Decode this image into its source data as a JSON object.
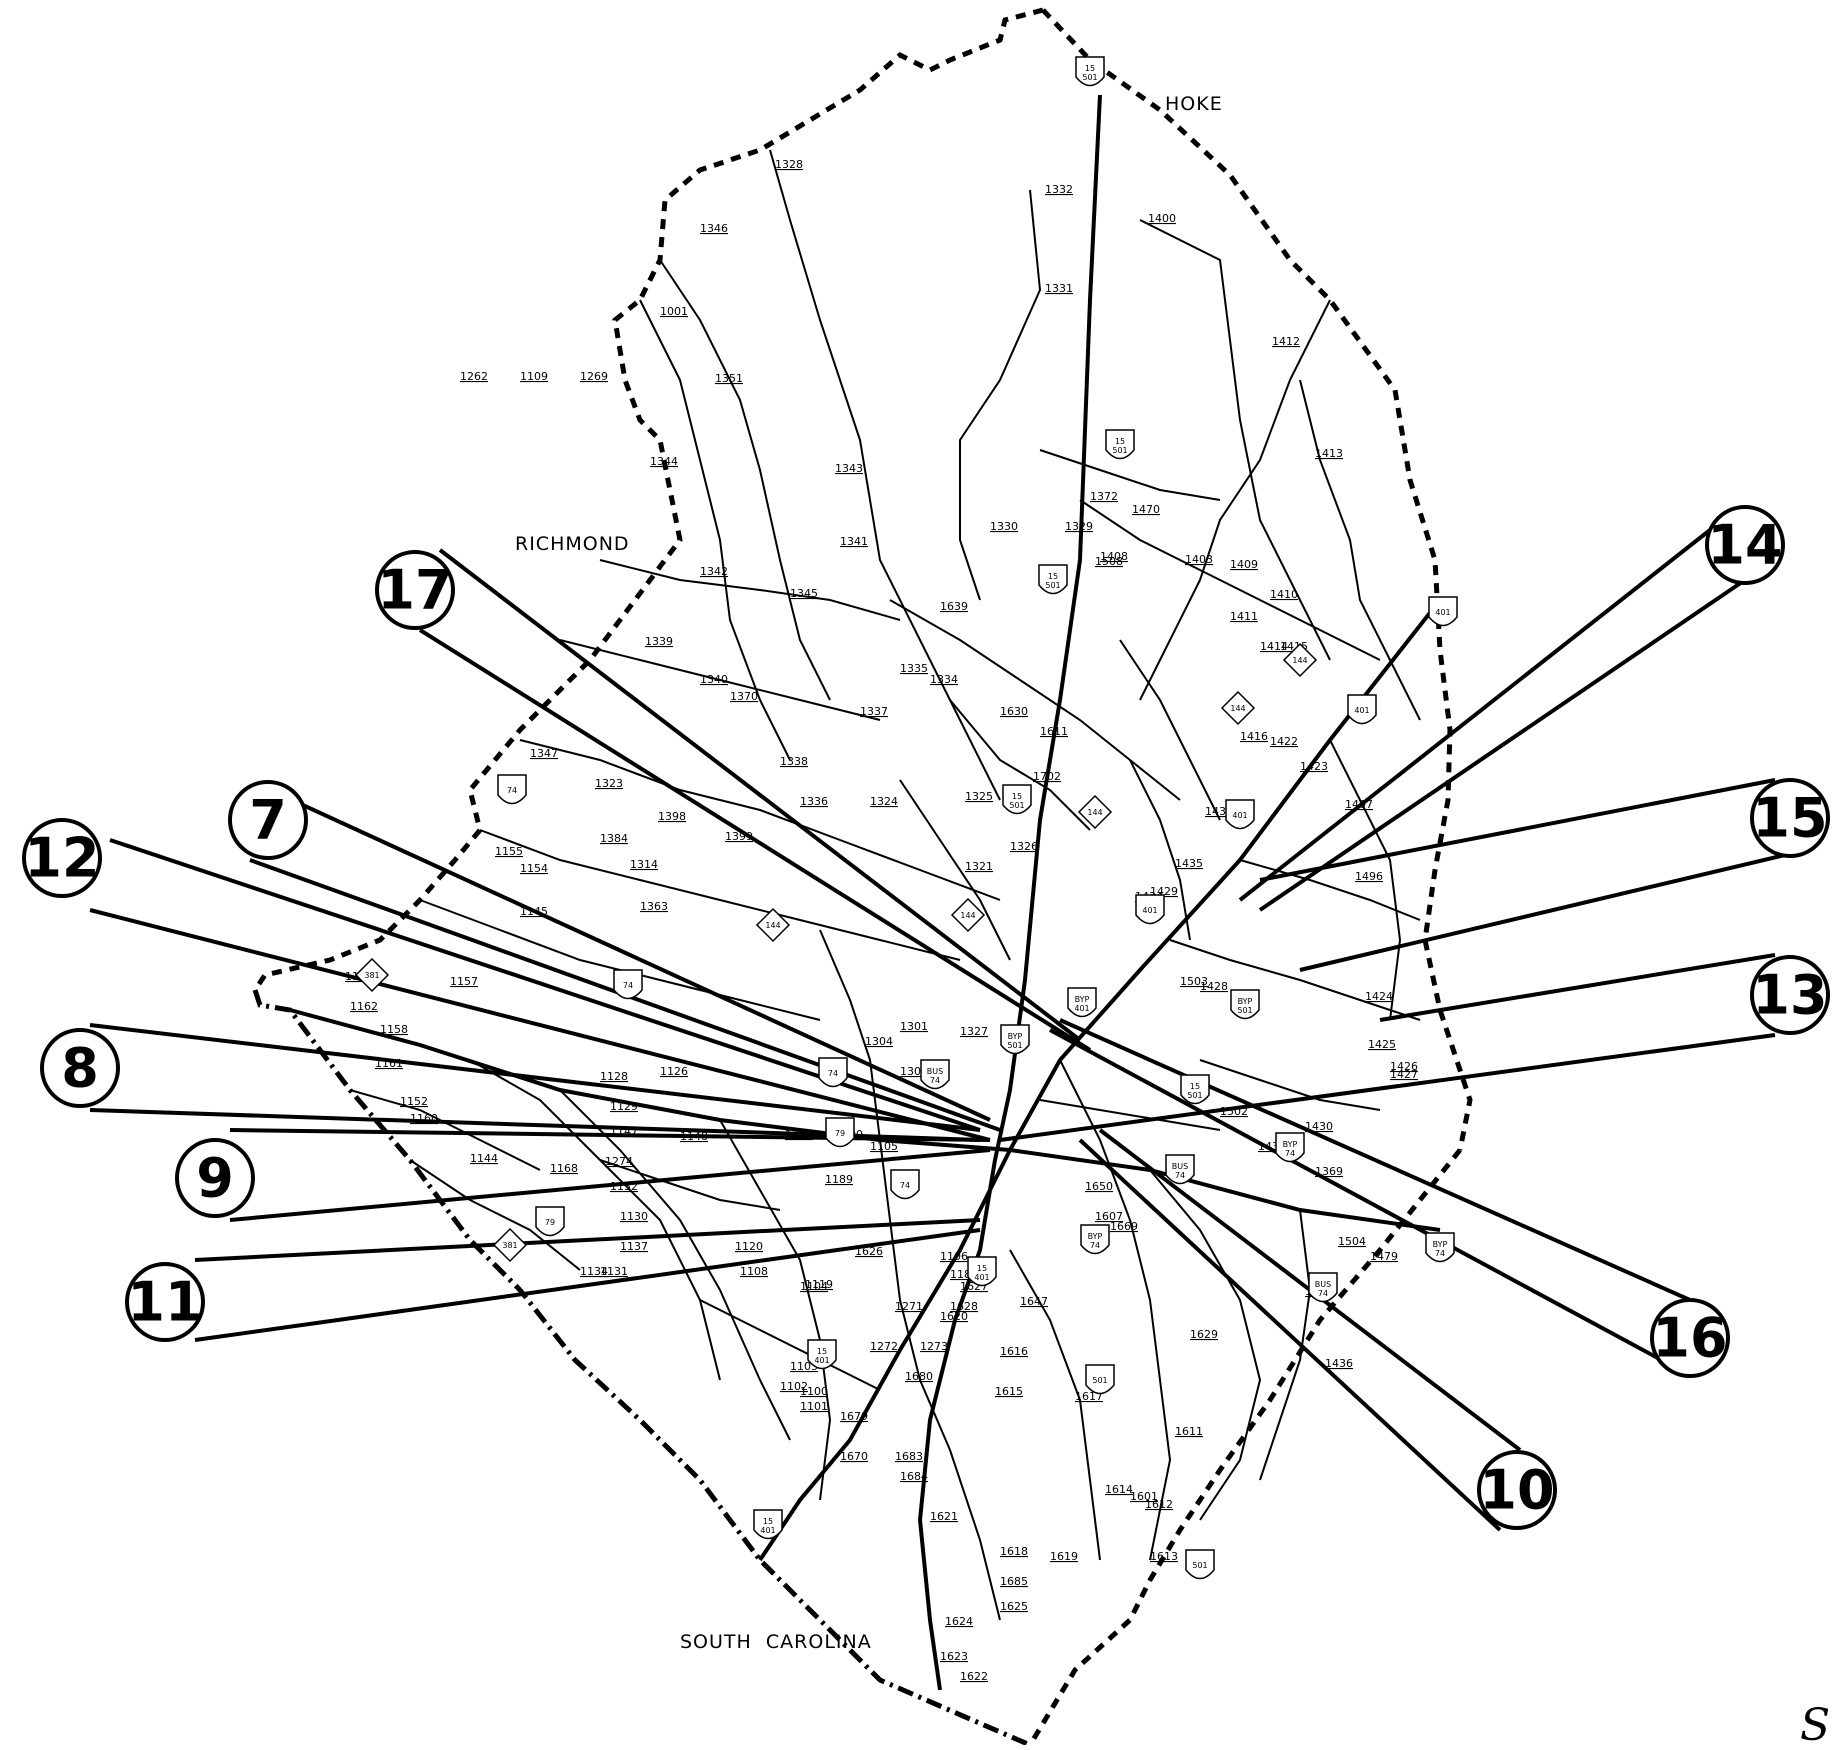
{
  "counties": [
    {
      "id": "hoke",
      "label": "HOKE"
    },
    {
      "id": "richmond",
      "label": "RICHMOND"
    },
    {
      "id": "south-carolina",
      "label": "SOUTH  CAROLINA"
    }
  ],
  "corner_fragment": "S",
  "callouts": [
    "17",
    "7",
    "12",
    "8",
    "9",
    "11",
    "14",
    "15",
    "13",
    "16",
    "10"
  ],
  "route_labels": [
    "1328",
    "1346",
    "1001",
    "1351",
    "1344",
    "1342",
    "1339",
    "1340",
    "1370",
    "1347",
    "1323",
    "1398",
    "1399",
    "1384",
    "1314",
    "1363",
    "1155",
    "1154",
    "1145",
    "1157",
    "1163",
    "1162",
    "1158",
    "1161",
    "1152",
    "1160",
    "1144",
    "1168",
    "1274",
    "1132",
    "1137",
    "1131",
    "1134",
    "1130",
    "1120",
    "1108",
    "1104",
    "1100",
    "1101",
    "1102",
    "1103",
    "1128",
    "1129",
    "1126",
    "1148",
    "1147",
    "1332",
    "1331",
    "1400",
    "1412",
    "1413",
    "1343",
    "1341",
    "1345",
    "1335",
    "1334",
    "1337",
    "1338",
    "1336",
    "1324",
    "1325",
    "1321",
    "1330",
    "1329",
    "1372",
    "1408",
    "1508",
    "1470",
    "1403",
    "1409",
    "1410",
    "1411",
    "1414",
    "1415",
    "1416",
    "1422",
    "1423",
    "1407",
    "1496",
    "1424",
    "1425",
    "1426",
    "1427",
    "1433",
    "1434",
    "1435",
    "1429",
    "1428",
    "1503",
    "1502",
    "1431",
    "1430",
    "1369",
    "1504",
    "1479",
    "1495",
    "1436",
    "1629",
    "1611",
    "1612",
    "1613",
    "1601",
    "1619",
    "1618",
    "1617",
    "1616",
    "1615",
    "1614",
    "1620",
    "1621",
    "1622",
    "1623",
    "1624",
    "1625",
    "1685",
    "1684",
    "1683",
    "1680",
    "1679",
    "1670",
    "1628",
    "1627",
    "1626",
    "1271",
    "1272",
    "1273",
    "1607",
    "1669",
    "1650",
    "1647",
    "1639",
    "1630",
    "1611",
    "1702",
    "1326",
    "1327",
    "1301",
    "1303",
    "1304",
    "1300",
    "1105",
    "1106",
    "1305",
    "1189",
    "1188",
    "1119",
    "1262",
    "1109",
    "1269"
  ],
  "shields": [
    {
      "route": "15\n501"
    },
    {
      "route": "74"
    },
    {
      "route": "144"
    },
    {
      "route": "401"
    },
    {
      "route": "BYP\n401"
    },
    {
      "route": "BYP\n501"
    },
    {
      "route": "BUS\n74"
    },
    {
      "route": "BYP\n74"
    },
    {
      "route": "79"
    },
    {
      "route": "381"
    },
    {
      "route": "15\n401"
    },
    {
      "route": "501"
    }
  ]
}
